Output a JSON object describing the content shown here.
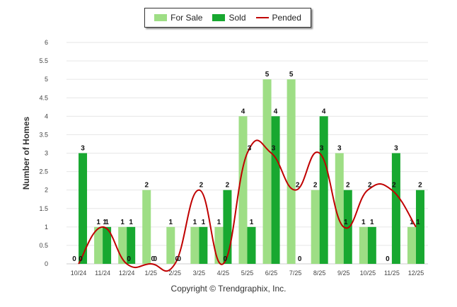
{
  "chart_data": {
    "type": "bar",
    "categories": [
      "10/24",
      "11/24",
      "12/24",
      "1/25",
      "2/25",
      "3/25",
      "4/25",
      "5/25",
      "6/25",
      "7/25",
      "8/25",
      "9/25",
      "10/25",
      "11/25",
      "12/25"
    ],
    "series": [
      {
        "name": "For Sale",
        "type": "bar",
        "color": "#9ede85",
        "values": [
          0,
          1,
          1,
          2,
          1,
          1,
          1,
          4,
          5,
          5,
          2,
          3,
          1,
          0,
          1
        ]
      },
      {
        "name": "Sold",
        "type": "bar",
        "color": "#18a830",
        "values": [
          3,
          1,
          1,
          0,
          0,
          1,
          2,
          1,
          4,
          0,
          4,
          2,
          1,
          3,
          2
        ]
      },
      {
        "name": "Pended",
        "type": "line",
        "color": "#c00000",
        "values": [
          0,
          1,
          0,
          0,
          0,
          2,
          0,
          3,
          3,
          2,
          3,
          1,
          2,
          2,
          1
        ]
      }
    ],
    "ylabel": "Number of Homes",
    "xlabel": "",
    "ylim": [
      0,
      6
    ],
    "yticks": [
      "0",
      "0.5",
      "1",
      "1.5",
      "2",
      "2.5",
      "3",
      "3.5",
      "4",
      "4.5",
      "5",
      "5.5",
      "6"
    ],
    "grid": true,
    "legend_position": "top-center"
  },
  "footer": {
    "copyright": "Copyright © Trendgraphix, Inc."
  }
}
